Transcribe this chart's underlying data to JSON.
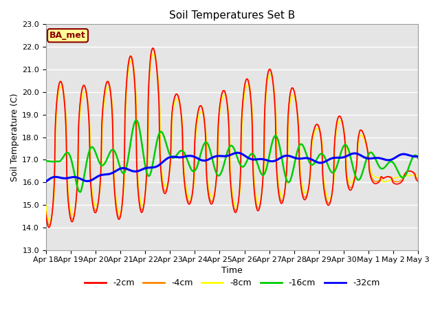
{
  "title": "Soil Temperatures Set B",
  "xlabel": "Time",
  "ylabel": "Soil Temperature (C)",
  "ylim": [
    13.0,
    23.0
  ],
  "yticks": [
    13.0,
    14.0,
    15.0,
    16.0,
    17.0,
    18.0,
    19.0,
    20.0,
    21.0,
    22.0,
    23.0
  ],
  "bg_color": "#e5e5e5",
  "fig_color": "#ffffff",
  "grid_color": "#ffffff",
  "label_box": "BA_met",
  "series_colors": {
    "-2cm": "#ff0000",
    "-4cm": "#ff8800",
    "-8cm": "#ffff00",
    "-16cm": "#00cc00",
    "-32cm": "#0000ff"
  },
  "x_tick_labels": [
    "Apr 18",
    "Apr 19",
    "Apr 20",
    "Apr 21",
    "Apr 22",
    "Apr 23",
    "Apr 24",
    "Apr 25",
    "Apr 26",
    "Apr 27",
    "Apr 28",
    "Apr 29",
    "Apr 30",
    "May 1",
    "May 2",
    "May 3"
  ],
  "line_widths": {
    "-2cm": 1.2,
    "-4cm": 1.2,
    "-8cm": 1.2,
    "-16cm": 1.8,
    "-32cm": 2.2
  }
}
